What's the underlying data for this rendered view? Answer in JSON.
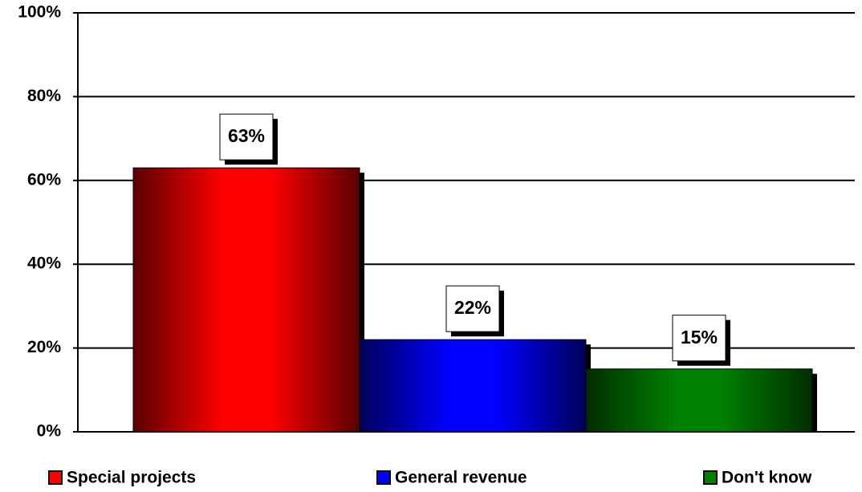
{
  "chart_data": {
    "type": "bar",
    "series": [
      {
        "name": "Special projects",
        "color": "#ff0000",
        "values": [
          63
        ],
        "value_labels": [
          "63%"
        ]
      },
      {
        "name": "General revenue",
        "color": "#0000ff",
        "values": [
          22
        ],
        "value_labels": [
          "22%"
        ]
      },
      {
        "name": "Don't know",
        "color": "#008000",
        "values": [
          15
        ],
        "value_labels": [
          "15%"
        ]
      }
    ],
    "ylim": [
      0,
      100
    ],
    "yticks": [
      {
        "value": 0,
        "label": "0%"
      },
      {
        "value": 20,
        "label": "20%"
      },
      {
        "value": 40,
        "label": "40%"
      },
      {
        "value": 60,
        "label": "60%"
      },
      {
        "value": 80,
        "label": "80%"
      },
      {
        "value": 100,
        "label": "100%"
      }
    ],
    "grid": true
  }
}
